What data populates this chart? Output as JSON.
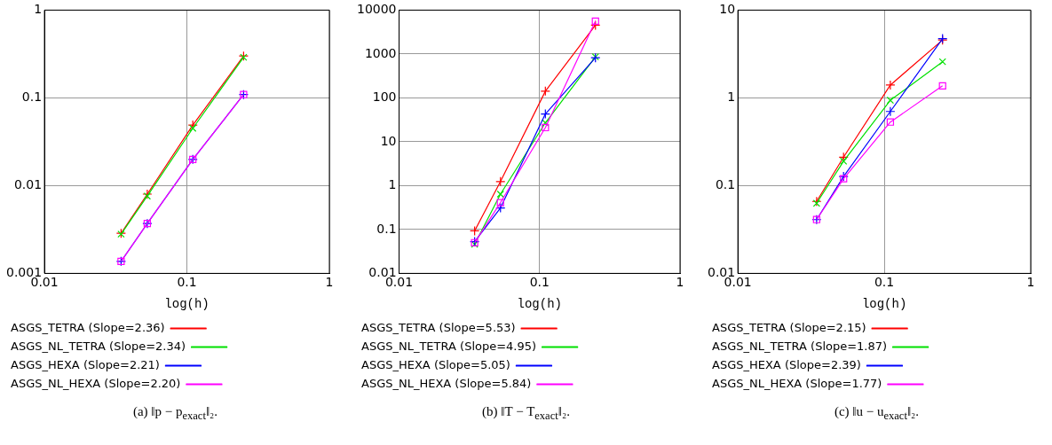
{
  "chart_data": [
    {
      "type": "line",
      "title": "(a) ‖p − p$_{exact}$‖₂.",
      "xlabel": "log(h)",
      "log": "xy",
      "grid": true,
      "legend": "bottom",
      "xlim": [
        0.01,
        1
      ],
      "xticks": [
        0.01,
        0.1,
        1
      ],
      "ylim": [
        0.001,
        1
      ],
      "yticks": [
        0.001,
        0.01,
        0.1,
        1
      ],
      "x": [
        0.0345,
        0.0527,
        0.11,
        0.25
      ],
      "series": [
        {
          "name": "ASGS_TETRA (Slope=2.36)",
          "color": "#ff0000",
          "marker": "cross",
          "values": [
            0.00286,
            0.008,
            0.049,
            0.3
          ]
        },
        {
          "name": "ASGS_NL_TETRA (Slope=2.34)",
          "color": "#00e000",
          "marker": "x",
          "values": [
            0.0028,
            0.0076,
            0.045,
            0.29
          ]
        },
        {
          "name": "ASGS_HEXA (Slope=2.21)",
          "color": "#0000ff",
          "marker": "cross",
          "values": [
            0.00137,
            0.0037,
            0.0199,
            0.109
          ]
        },
        {
          "name": "ASGS_NL_HEXA (Slope=2.20)",
          "color": "#ff00ff",
          "marker": "square",
          "values": [
            0.00137,
            0.0037,
            0.0199,
            0.109
          ]
        }
      ]
    },
    {
      "type": "line",
      "title": "(b) ‖T − T$_{exact}$‖₂.",
      "xlabel": "log(h)",
      "log": "xy",
      "grid": true,
      "legend": "bottom",
      "xlim": [
        0.01,
        1
      ],
      "xticks": [
        0.01,
        0.1,
        1
      ],
      "ylim": [
        0.01,
        10000
      ],
      "yticks": [
        0.01,
        0.1,
        1,
        10,
        100,
        1000,
        10000
      ],
      "x": [
        0.0345,
        0.0527,
        0.11,
        0.25
      ],
      "series": [
        {
          "name": "ASGS_TETRA (Slope=5.53)",
          "color": "#ff0000",
          "marker": "cross",
          "values": [
            0.093,
            1.24,
            142,
            4530
          ]
        },
        {
          "name": "ASGS_NL_TETRA (Slope=4.95)",
          "color": "#00e000",
          "marker": "x",
          "values": [
            0.046,
            0.64,
            27,
            860
          ]
        },
        {
          "name": "ASGS_HEXA (Slope=5.05)",
          "color": "#0000ff",
          "marker": "cross",
          "values": [
            0.053,
            0.31,
            43,
            820
          ]
        },
        {
          "name": "ASGS_NL_HEXA (Slope=5.84)",
          "color": "#ff00ff",
          "marker": "square",
          "values": [
            0.05,
            0.41,
            21,
            5600
          ]
        }
      ]
    },
    {
      "type": "line",
      "title": "(c) ‖u − u$_{exact}$‖₂.",
      "xlabel": "log(h)",
      "log": "xy",
      "grid": true,
      "legend": "bottom",
      "xlim": [
        0.01,
        1
      ],
      "xticks": [
        0.01,
        0.1,
        1
      ],
      "ylim": [
        0.01,
        10
      ],
      "yticks": [
        0.01,
        0.1,
        1,
        10
      ],
      "x": [
        0.0345,
        0.0527,
        0.11,
        0.25
      ],
      "series": [
        {
          "name": "ASGS_TETRA (Slope=2.15)",
          "color": "#ff0000",
          "marker": "cross",
          "values": [
            0.066,
            0.211,
            1.4,
            4.56
          ]
        },
        {
          "name": "ASGS_NL_TETRA (Slope=1.87)",
          "color": "#00e000",
          "marker": "x",
          "values": [
            0.063,
            0.19,
            0.94,
            2.58
          ]
        },
        {
          "name": "ASGS_HEXA (Slope=2.39)",
          "color": "#0000ff",
          "marker": "cross",
          "values": [
            0.041,
            0.127,
            0.7,
            4.73
          ]
        },
        {
          "name": "ASGS_NL_HEXA (Slope=1.77)",
          "color": "#ff00ff",
          "marker": "square",
          "values": [
            0.041,
            0.12,
            0.53,
            1.37
          ]
        }
      ]
    }
  ]
}
